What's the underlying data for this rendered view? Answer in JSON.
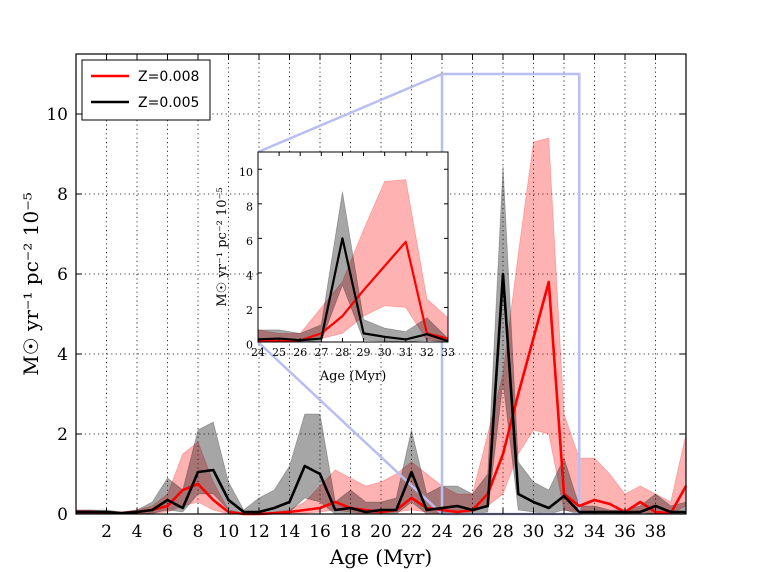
{
  "chart_data": [
    {
      "id": "main",
      "type": "line",
      "xlabel": "Age (Myr)",
      "ylabel": "M☉ yr⁻¹ pc⁻² 10⁻⁵",
      "xlim": [
        0,
        40
      ],
      "ylim": [
        0,
        11.5
      ],
      "xticks": [
        2,
        4,
        6,
        8,
        10,
        12,
        14,
        16,
        18,
        20,
        22,
        24,
        26,
        28,
        30,
        32,
        34,
        36,
        38
      ],
      "yticks": [
        0,
        2,
        4,
        6,
        8,
        10
      ],
      "legend_position": "top-left",
      "series": [
        {
          "name": "Z=0.008",
          "color": "#ff0000",
          "band_color": "#ff0000",
          "x": [
            0,
            1,
            2,
            3,
            4,
            5,
            6,
            7,
            8,
            9,
            10,
            11,
            12,
            13,
            14,
            15,
            16,
            17,
            18,
            19,
            20,
            21,
            22,
            23,
            24,
            25,
            26,
            27,
            28,
            29,
            30,
            31,
            32,
            33,
            34,
            35,
            36,
            37,
            38,
            39,
            40
          ],
          "y": [
            0.05,
            0.05,
            0.03,
            0.02,
            0.05,
            0.1,
            0.2,
            0.6,
            0.75,
            0.35,
            0.05,
            0,
            0,
            0.02,
            0.05,
            0.1,
            0.15,
            0.3,
            0.15,
            0.1,
            0.05,
            0.1,
            0.4,
            0.15,
            0.1,
            0.05,
            0.1,
            0.5,
            1.5,
            3.0,
            4.4,
            5.8,
            0.5,
            0.2,
            0.35,
            0.25,
            0.05,
            0.3,
            0.05,
            0.02,
            0.7
          ],
          "upper": [
            0.1,
            0.1,
            0.05,
            0.05,
            0.1,
            0.2,
            0.5,
            1.5,
            1.8,
            0.8,
            0.1,
            0.02,
            0.02,
            0.05,
            0.1,
            0.3,
            0.7,
            1.1,
            0.9,
            0.7,
            0.8,
            1.0,
            1.3,
            1.0,
            0.7,
            0.5,
            0.5,
            2.0,
            3.5,
            6.5,
            9.3,
            9.4,
            2.5,
            1.4,
            1.4,
            1.0,
            0.5,
            0.7,
            0.5,
            0.3,
            2.0
          ],
          "lower": [
            0,
            0,
            0,
            0,
            0,
            0.02,
            0.05,
            0.2,
            0.3,
            0.1,
            0,
            0,
            0,
            0,
            0,
            0.02,
            0.05,
            0.1,
            0.05,
            0.02,
            0.02,
            0.05,
            0.1,
            0.05,
            0.02,
            0.02,
            0.05,
            0.2,
            0.5,
            1.5,
            2.1,
            2.0,
            0.1,
            0.05,
            0.1,
            0.05,
            0,
            0.05,
            0,
            0,
            0.2
          ]
        },
        {
          "name": "Z=0.005",
          "color": "#000000",
          "band_color": "#000000",
          "x": [
            0,
            1,
            2,
            3,
            4,
            5,
            6,
            7,
            8,
            9,
            10,
            11,
            12,
            13,
            14,
            15,
            16,
            17,
            18,
            19,
            20,
            21,
            22,
            23,
            24,
            25,
            26,
            27,
            28,
            29,
            30,
            31,
            32,
            33,
            34,
            35,
            36,
            37,
            38,
            39,
            40
          ],
          "y": [
            0.05,
            0.05,
            0.05,
            0.02,
            0.05,
            0.1,
            0.35,
            0.15,
            1.05,
            1.1,
            0.35,
            0.05,
            0.05,
            0.15,
            0.3,
            1.2,
            1.0,
            0.1,
            0.15,
            0.05,
            0.1,
            0.1,
            1.05,
            0.1,
            0.15,
            0.2,
            0.1,
            0.2,
            6.0,
            0.5,
            0.3,
            0.15,
            0.45,
            0.05,
            0.05,
            0.05,
            0.05,
            0.05,
            0.2,
            0.05,
            0.05
          ],
          "upper": [
            0.1,
            0.1,
            0.1,
            0.05,
            0.1,
            0.3,
            0.9,
            0.6,
            2.1,
            2.3,
            0.8,
            0.1,
            0.4,
            0.6,
            1.2,
            2.5,
            2.5,
            0.3,
            0.6,
            0.3,
            0.3,
            0.4,
            2.1,
            0.5,
            0.7,
            0.7,
            0.5,
            1.0,
            8.7,
            1.3,
            0.8,
            0.6,
            1.4,
            0.2,
            0.2,
            0.1,
            0.1,
            0.2,
            0.5,
            0.2,
            0.3
          ],
          "lower": [
            0,
            0,
            0,
            0,
            0,
            0.02,
            0.1,
            0.05,
            0.5,
            0.5,
            0.1,
            0,
            0,
            0.02,
            0.05,
            0.4,
            0.3,
            0,
            0,
            0,
            0,
            0,
            0.3,
            0,
            0,
            0.02,
            0,
            0.05,
            3.3,
            0.1,
            0.05,
            0,
            0.1,
            0,
            0,
            0,
            0,
            0,
            0.02,
            0,
            0
          ]
        }
      ]
    },
    {
      "id": "inset",
      "type": "line",
      "xlabel": "Age (Myr)",
      "ylabel": "M☉ yr⁻¹ pc⁻² 10⁻⁵",
      "xlim": [
        24,
        33
      ],
      "ylim": [
        0,
        11
      ],
      "xticks": [
        24,
        25,
        26,
        27,
        28,
        29,
        30,
        31,
        32,
        33
      ],
      "yticks": [
        0,
        2,
        4,
        6,
        8,
        10
      ],
      "zoom_region": {
        "x": [
          24,
          33
        ],
        "y": [
          0,
          11
        ]
      },
      "series": [
        {
          "name": "Z=0.008",
          "color": "#ff0000",
          "x": [
            24,
            25,
            26,
            27,
            28,
            29,
            30,
            31,
            32,
            33
          ],
          "y": [
            0.1,
            0.05,
            0.1,
            0.5,
            1.5,
            3.0,
            4.4,
            5.8,
            0.5,
            0.2
          ],
          "upper": [
            0.7,
            0.5,
            0.5,
            2.0,
            3.5,
            6.5,
            9.3,
            9.4,
            2.5,
            1.4
          ],
          "lower": [
            0.02,
            0.02,
            0.05,
            0.2,
            0.5,
            1.5,
            2.1,
            2.0,
            0.1,
            0.05
          ]
        },
        {
          "name": "Z=0.005",
          "color": "#000000",
          "x": [
            24,
            25,
            26,
            27,
            28,
            29,
            30,
            31,
            32,
            33
          ],
          "y": [
            0.15,
            0.2,
            0.1,
            0.2,
            6.0,
            0.5,
            0.3,
            0.15,
            0.45,
            0.05
          ],
          "upper": [
            0.7,
            0.7,
            0.5,
            1.0,
            8.7,
            1.3,
            0.8,
            0.6,
            1.4,
            0.2
          ],
          "lower": [
            0,
            0.02,
            0,
            0.05,
            3.3,
            0.1,
            0.05,
            0,
            0.1,
            0
          ]
        }
      ]
    }
  ]
}
